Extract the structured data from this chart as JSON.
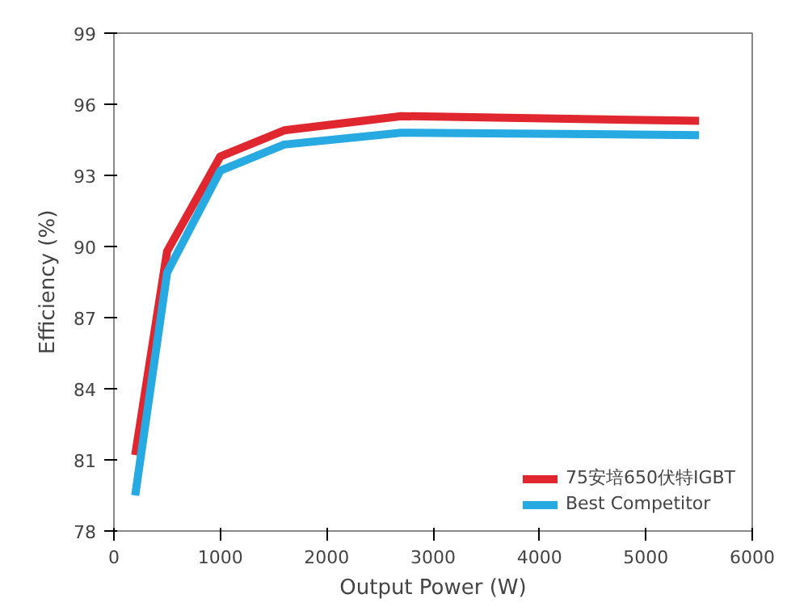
{
  "chart_data": {
    "type": "line",
    "xlabel": "Output Power (W)",
    "ylabel": "Efficiency (%)",
    "x": [
      200,
      500,
      1000,
      1600,
      2700,
      5500
    ],
    "series": [
      {
        "name": "75安培650伏特IGBT",
        "color": "#e0262e",
        "values": [
          81.2,
          89.8,
          93.8,
          94.9,
          95.5,
          95.3
        ]
      },
      {
        "name": "Best Competitor",
        "color": "#27aae1",
        "values": [
          79.5,
          88.9,
          93.2,
          94.3,
          94.8,
          94.7
        ]
      }
    ],
    "xlim": [
      0,
      6000
    ],
    "xticks": [
      0,
      1000,
      2000,
      3000,
      4000,
      5000,
      6000
    ],
    "ylim": [
      78,
      99
    ],
    "yticks": [
      78,
      81,
      84,
      87,
      90,
      93,
      96,
      99
    ],
    "grid": false,
    "legend": "bottom right",
    "marker": "none",
    "line_style": "solid"
  }
}
